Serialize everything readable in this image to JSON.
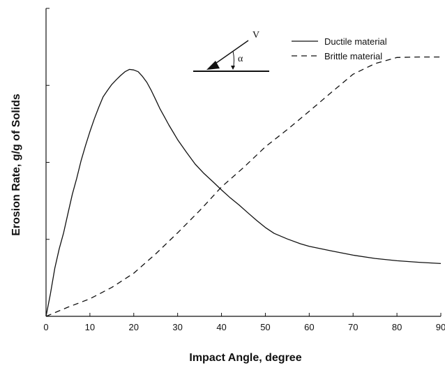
{
  "chart_data": {
    "type": "line",
    "title": "",
    "xlabel": "Impact Angle, degree",
    "ylabel": "Erosion Rate, g/g of Solids",
    "xlim": [
      0,
      90
    ],
    "xticks": [
      0,
      10,
      20,
      30,
      40,
      50,
      60,
      70,
      80,
      90
    ],
    "ylim": [
      0,
      100
    ],
    "y_tick_labels_shown": false,
    "grid": false,
    "legend_position": "top-right",
    "series": [
      {
        "name": "Ductile material",
        "line_style": "solid",
        "color": "#111111",
        "x": [
          0,
          1,
          2,
          3,
          4,
          5,
          6,
          7,
          8,
          9,
          10,
          11,
          12,
          13,
          14,
          15,
          16,
          17,
          18,
          19,
          20,
          21,
          22,
          23,
          24,
          25,
          26,
          27,
          28,
          29,
          30,
          32,
          34,
          36,
          38,
          40,
          42,
          44,
          46,
          48,
          50,
          52,
          55,
          58,
          60,
          65,
          70,
          75,
          80,
          85,
          90
        ],
        "y": [
          0,
          8.9,
          19.0,
          26.6,
          32.9,
          40.5,
          48.1,
          54.4,
          61.4,
          67.3,
          72.8,
          77.8,
          82.3,
          86.5,
          89.0,
          91.4,
          93.2,
          94.9,
          96.4,
          97.3,
          97.1,
          96.4,
          94.5,
          92.2,
          89.0,
          85.4,
          81.7,
          78.6,
          75.4,
          72.5,
          69.6,
          64.7,
          60.0,
          56.3,
          53.1,
          49.8,
          46.7,
          43.9,
          40.8,
          37.8,
          35.0,
          32.7,
          30.5,
          28.6,
          27.6,
          25.8,
          24.1,
          22.8,
          21.9,
          21.3,
          20.8
        ]
      },
      {
        "name": "Brittle material",
        "line_style": "dashed",
        "color": "#111111",
        "x": [
          0,
          5,
          10,
          15,
          20,
          25,
          30,
          35,
          40,
          45,
          50,
          55,
          60,
          65,
          70,
          75,
          80,
          85,
          90
        ],
        "y": [
          0,
          3.6,
          6.9,
          11.4,
          17.0,
          24.6,
          32.9,
          41.6,
          51.0,
          58.6,
          66.8,
          73.6,
          80.8,
          88.2,
          95.4,
          99.6,
          102.0,
          102.2,
          102.2
        ]
      }
    ],
    "inset_diagram": {
      "velocity_label": "V",
      "angle_label": "α"
    }
  }
}
